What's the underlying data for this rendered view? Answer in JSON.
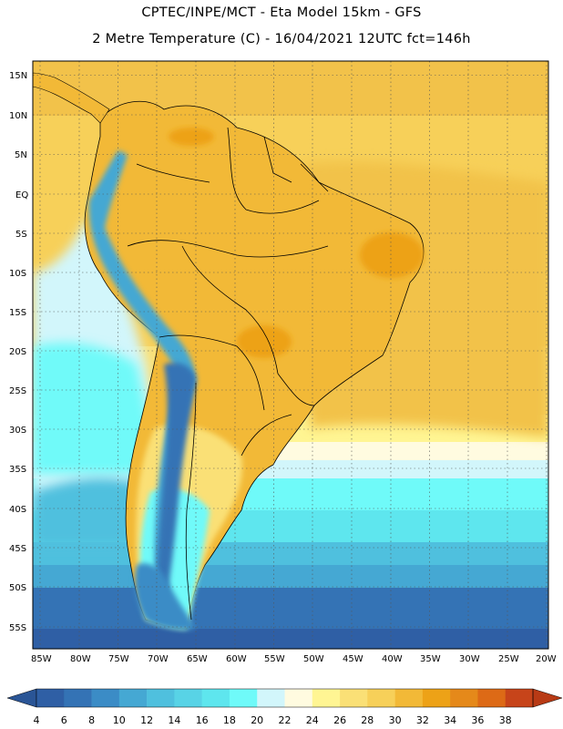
{
  "header": {
    "line1": "CPTEC/INPE/MCT -  Eta Model 15km - GFS",
    "line2": "2 Metre Temperature (C) - 16/04/2021 12UTC fct=146h"
  },
  "map": {
    "latitude_labels": [
      "15N",
      "10N",
      "5N",
      "EQ",
      "5S",
      "10S",
      "15S",
      "20S",
      "25S",
      "30S",
      "35S",
      "40S",
      "45S",
      "50S",
      "55S"
    ],
    "longitude_labels": [
      "85W",
      "80W",
      "75W",
      "70W",
      "65W",
      "60W",
      "55W",
      "50W",
      "45W",
      "40W",
      "35W",
      "30W",
      "25W",
      "20W"
    ],
    "region": "South America"
  },
  "colorbar": {
    "ticks": [
      "4",
      "6",
      "8",
      "10",
      "12",
      "14",
      "16",
      "18",
      "20",
      "22",
      "24",
      "26",
      "28",
      "30",
      "32",
      "34",
      "36",
      "38"
    ],
    "colors": [
      "#2f5fa5",
      "#3473b5",
      "#3b8cc6",
      "#45a8d3",
      "#4fc0de",
      "#58d3e6",
      "#5ee6ee",
      "#6ffaf9",
      "#d2f6fb",
      "#fffbe0",
      "#fff593",
      "#fae076",
      "#f7d059",
      "#f2b937",
      "#eda217",
      "#e5891a",
      "#dd6a16",
      "#c7441a"
    ],
    "low_color": "#2a5596",
    "high_color": "#b83a15"
  }
}
